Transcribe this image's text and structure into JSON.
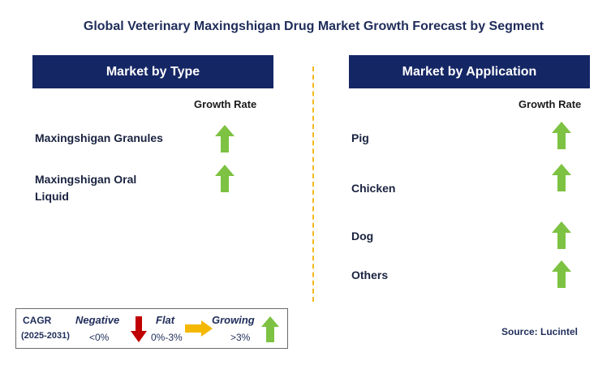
{
  "title": "Global Veterinary Maxingshigan Drug Market Growth Forecast by Segment",
  "left_panel": {
    "header": "Market by Type",
    "column_header": "Growth Rate",
    "items": [
      {
        "label_line1": "Maxingshigan Granules",
        "label_line2": "",
        "trend": "growing"
      },
      {
        "label_line1": "Maxingshigan Oral",
        "label_line2": "Liquid",
        "trend": "growing"
      }
    ]
  },
  "right_panel": {
    "header": "Market by Application",
    "column_header": "Growth Rate",
    "items": [
      {
        "label": "Pig",
        "trend": "growing"
      },
      {
        "label": "Chicken",
        "trend": "growing"
      },
      {
        "label": "Dog",
        "trend": "growing"
      },
      {
        "label": "Others",
        "trend": "growing"
      }
    ]
  },
  "legend": {
    "cagr_label": "CAGR",
    "period": "(2025-2031)",
    "negative_label": "Negative",
    "negative_value": "<0%",
    "flat_label": "Flat",
    "flat_value": "0%-3%",
    "growing_label": "Growing",
    "growing_value": ">3%"
  },
  "source": "Source: Lucintel",
  "colors": {
    "header_bg": "#142664",
    "growing": "#7dc242",
    "negative": "#c00000",
    "flat": "#f5b800",
    "divider": "#f2b81c"
  },
  "icons": {
    "growing": "green-up-arrow-icon",
    "negative": "red-down-arrow-icon",
    "flat": "yellow-right-arrow-icon"
  }
}
